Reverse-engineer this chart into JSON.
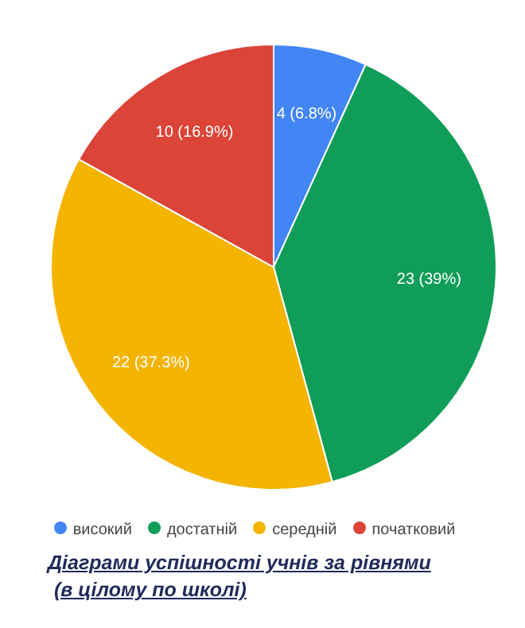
{
  "chart_data": {
    "type": "pie",
    "title": "Діаграми успішності учнів за рівнями",
    "subtitle": "(в цілому по школі)",
    "categories": [
      "високий",
      "достатній",
      "середній",
      "початковий"
    ],
    "values": [
      4,
      23,
      22,
      10
    ],
    "colors": [
      "#4285f4",
      "#0f9d58",
      "#f4b400",
      "#db4437"
    ],
    "value_labels": [
      "4 (6.8%)",
      "23 (39%)",
      "22 (37.3%)",
      "10 (16.9%)"
    ],
    "legend": "bottom"
  }
}
